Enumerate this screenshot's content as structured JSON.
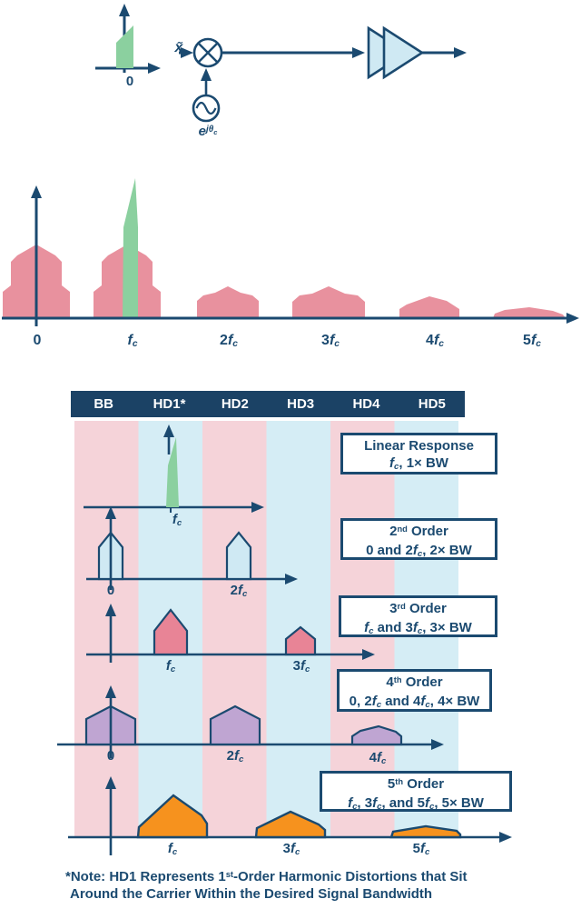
{
  "colors": {
    "navy": "#1B4A70",
    "header_bg": "#1B4265",
    "stripe_pink": "#F5D3D9",
    "stripe_blue": "#D5EDF5",
    "signal_green": "#8BD09F",
    "hump_pink": "#E8919E",
    "hump_red": "#E88496",
    "hump_blue": "#CFE9F3",
    "hump_purple": "#BFA5D2",
    "hump_orange": "#F6921E",
    "box_bg": "#FFFFFF"
  },
  "block_diagram": {
    "baseband_zero": "0",
    "input_signal": [
      {
        "t": "x̃",
        "s": "i"
      }
    ],
    "oscillator": [
      {
        "t": "e",
        "s": "i"
      },
      {
        "t": "jθ",
        "s": "isup"
      },
      {
        "t": "c",
        "s": "isubsup"
      }
    ]
  },
  "spectrum": {
    "labels": [
      [
        {
          "t": "0"
        }
      ],
      [
        {
          "t": "f",
          "s": "i"
        },
        {
          "t": "c",
          "s": "sub"
        }
      ],
      [
        {
          "t": "2"
        },
        {
          "t": "f",
          "s": "i"
        },
        {
          "t": "c",
          "s": "sub"
        }
      ],
      [
        {
          "t": "3"
        },
        {
          "t": "f",
          "s": "i"
        },
        {
          "t": "c",
          "s": "sub"
        }
      ],
      [
        {
          "t": "4"
        },
        {
          "t": "f",
          "s": "i"
        },
        {
          "t": "c",
          "s": "sub"
        }
      ],
      [
        {
          "t": "5"
        },
        {
          "t": "f",
          "s": "i"
        },
        {
          "t": "c",
          "s": "sub"
        }
      ]
    ]
  },
  "table": {
    "header_labels": [
      "BB",
      "HD1*",
      "HD2",
      "HD3",
      "HD4",
      "HD5"
    ],
    "rows": [
      {
        "box_line1": [
          {
            "t": "Linear Response"
          }
        ],
        "box_line2": [
          {
            "t": "f",
            "s": "i"
          },
          {
            "t": "c",
            "s": "sub"
          },
          {
            "t": ", 1× BW"
          }
        ],
        "labels": [
          [
            {
              "t": "f",
              "s": "i"
            },
            {
              "t": "c",
              "s": "sub"
            }
          ]
        ]
      },
      {
        "box_line1": [
          {
            "t": "2"
          },
          {
            "t": "nd",
            "s": "sup"
          },
          {
            "t": " Order"
          }
        ],
        "box_line2": [
          {
            "t": "0 and 2"
          },
          {
            "t": "f",
            "s": "i"
          },
          {
            "t": "c",
            "s": "sub"
          },
          {
            "t": ", 2× BW"
          }
        ],
        "labels": [
          [
            {
              "t": "0"
            }
          ],
          [
            {
              "t": "2"
            },
            {
              "t": "f",
              "s": "i"
            },
            {
              "t": "c",
              "s": "sub"
            }
          ]
        ]
      },
      {
        "box_line1": [
          {
            "t": "3"
          },
          {
            "t": "rd",
            "s": "sup"
          },
          {
            "t": " Order"
          }
        ],
        "box_line2": [
          {
            "t": "f",
            "s": "i"
          },
          {
            "t": "c",
            "s": "sub"
          },
          {
            "t": " and 3"
          },
          {
            "t": "f",
            "s": "i"
          },
          {
            "t": "c",
            "s": "sub"
          },
          {
            "t": ", 3× BW"
          }
        ],
        "labels": [
          [
            {
              "t": "f",
              "s": "i"
            },
            {
              "t": "c",
              "s": "sub"
            }
          ],
          [
            {
              "t": "3"
            },
            {
              "t": "f",
              "s": "i"
            },
            {
              "t": "c",
              "s": "sub"
            }
          ]
        ]
      },
      {
        "box_line1": [
          {
            "t": "4"
          },
          {
            "t": "th",
            "s": "sup"
          },
          {
            "t": " Order"
          }
        ],
        "box_line2": [
          {
            "t": "0, 2"
          },
          {
            "t": "f",
            "s": "i"
          },
          {
            "t": "c",
            "s": "sub"
          },
          {
            "t": " and 4"
          },
          {
            "t": "f",
            "s": "i"
          },
          {
            "t": "c",
            "s": "sub"
          },
          {
            "t": ", 4× BW"
          }
        ],
        "labels": [
          [
            {
              "t": "0"
            }
          ],
          [
            {
              "t": "2"
            },
            {
              "t": "f",
              "s": "i"
            },
            {
              "t": "c",
              "s": "sub"
            }
          ],
          [
            {
              "t": "4"
            },
            {
              "t": "f",
              "s": "i"
            },
            {
              "t": "c",
              "s": "sub"
            }
          ]
        ]
      },
      {
        "box_line1": [
          {
            "t": "5"
          },
          {
            "t": "th",
            "s": "sup"
          },
          {
            "t": " Order"
          }
        ],
        "box_line2": [
          {
            "t": "f",
            "s": "i"
          },
          {
            "t": "c",
            "s": "sub"
          },
          {
            "t": ", 3"
          },
          {
            "t": "f",
            "s": "i"
          },
          {
            "t": "c",
            "s": "sub"
          },
          {
            "t": ", and 5"
          },
          {
            "t": "f",
            "s": "i"
          },
          {
            "t": "c",
            "s": "sub"
          },
          {
            "t": ", 5× BW"
          }
        ],
        "labels": [
          [
            {
              "t": "f",
              "s": "i"
            },
            {
              "t": "c",
              "s": "sub"
            }
          ],
          [
            {
              "t": "3"
            },
            {
              "t": "f",
              "s": "i"
            },
            {
              "t": "c",
              "s": "sub"
            }
          ],
          [
            {
              "t": "5"
            },
            {
              "t": "f",
              "s": "i"
            },
            {
              "t": "c",
              "s": "sub"
            }
          ]
        ]
      }
    ]
  },
  "note": {
    "line1": [
      {
        "t": "*Note: HD1 Represents 1"
      },
      {
        "t": "st",
        "s": "sup"
      },
      {
        "t": "-Order Harmonic Distortions that Sit"
      }
    ],
    "line2": [
      {
        "t": "Around the Carrier Within the Desired Signal Bandwidth"
      }
    ]
  }
}
